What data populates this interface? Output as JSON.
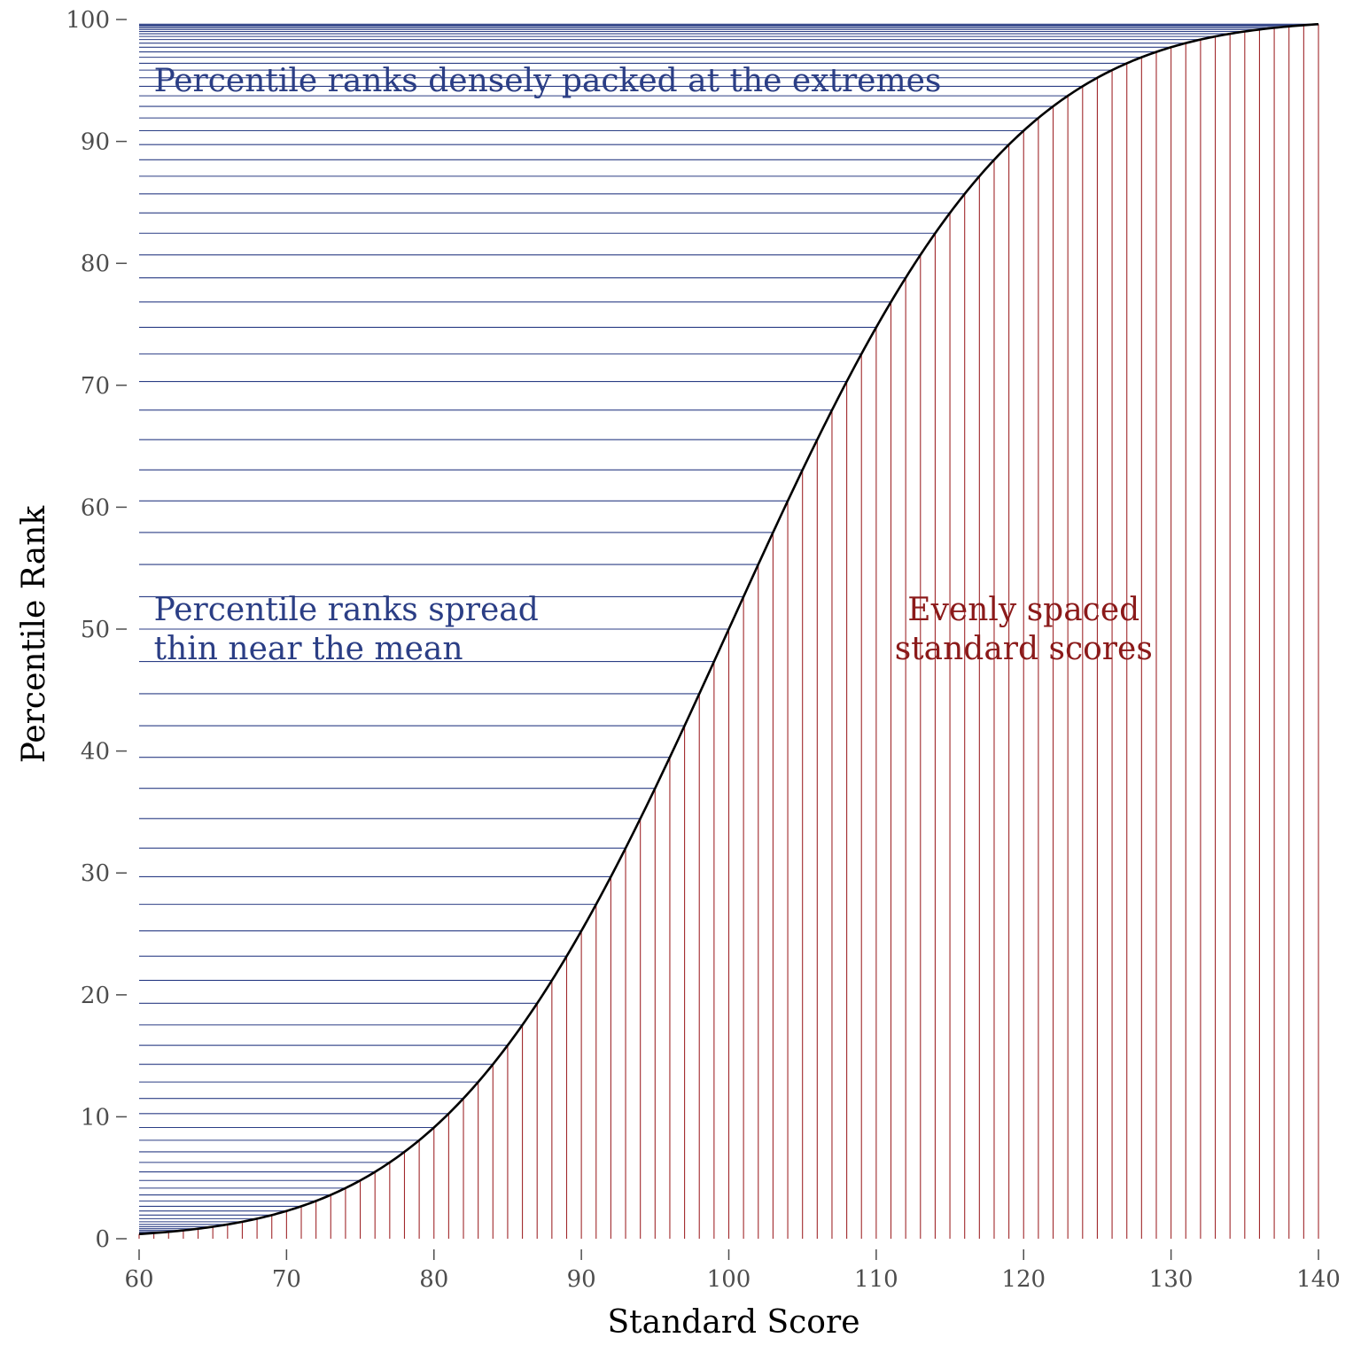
{
  "chart_data": {
    "type": "line",
    "title": "",
    "xlabel": "Standard Score",
    "ylabel": "Percentile Rank",
    "xlim": [
      60,
      140
    ],
    "ylim": [
      0,
      100
    ],
    "xticks": [
      60,
      70,
      80,
      90,
      100,
      110,
      120,
      130,
      140
    ],
    "yticks": [
      0,
      10,
      20,
      30,
      40,
      50,
      60,
      70,
      80,
      90,
      100
    ],
    "grid": false,
    "legend": "none",
    "curve": {
      "distribution": "normal",
      "mean": 100,
      "sd": 15,
      "x": [
        60,
        62,
        64,
        66,
        68,
        70,
        72,
        74,
        76,
        78,
        80,
        82,
        84,
        86,
        88,
        90,
        92,
        94,
        96,
        98,
        100,
        102,
        104,
        106,
        108,
        110,
        112,
        114,
        116,
        118,
        120,
        122,
        124,
        126,
        128,
        130,
        132,
        134,
        136,
        138,
        140
      ],
      "y": [
        0.38,
        0.57,
        0.82,
        1.16,
        1.62,
        2.28,
        3.11,
        4.15,
        5.48,
        7.12,
        9.12,
        11.51,
        14.31,
        17.53,
        21.19,
        25.25,
        29.69,
        34.46,
        39.49,
        44.7,
        50.0,
        55.3,
        60.51,
        65.54,
        70.31,
        74.75,
        78.81,
        82.47,
        85.69,
        88.49,
        90.88,
        92.88,
        94.52,
        95.85,
        96.89,
        97.72,
        98.38,
        98.84,
        99.18,
        99.43,
        99.62
      ]
    },
    "drop_lines": {
      "x_start": 60,
      "x_end": 140,
      "x_step": 1,
      "description": "one line per integer standard score"
    },
    "annotations": [
      {
        "lines": [
          "Percentile ranks densely packed at the extremes"
        ],
        "x": 61,
        "y": 95,
        "anchor": "start",
        "color": "#2b3e85"
      },
      {
        "lines": [
          "Percentile ranks spread",
          "thin near the mean"
        ],
        "x": 61,
        "y": 50,
        "anchor": "start",
        "color": "#2b3e85"
      },
      {
        "lines": [
          "Evenly spaced",
          "standard scores"
        ],
        "x": 120,
        "y": 50,
        "anchor": "middle",
        "color": "#8b1a1a"
      }
    ],
    "colors": {
      "curve": "#000000",
      "horizontal_lines": "#2b3e85",
      "vertical_lines": "#a0282b",
      "axis_text": "#4d4d4d"
    }
  }
}
